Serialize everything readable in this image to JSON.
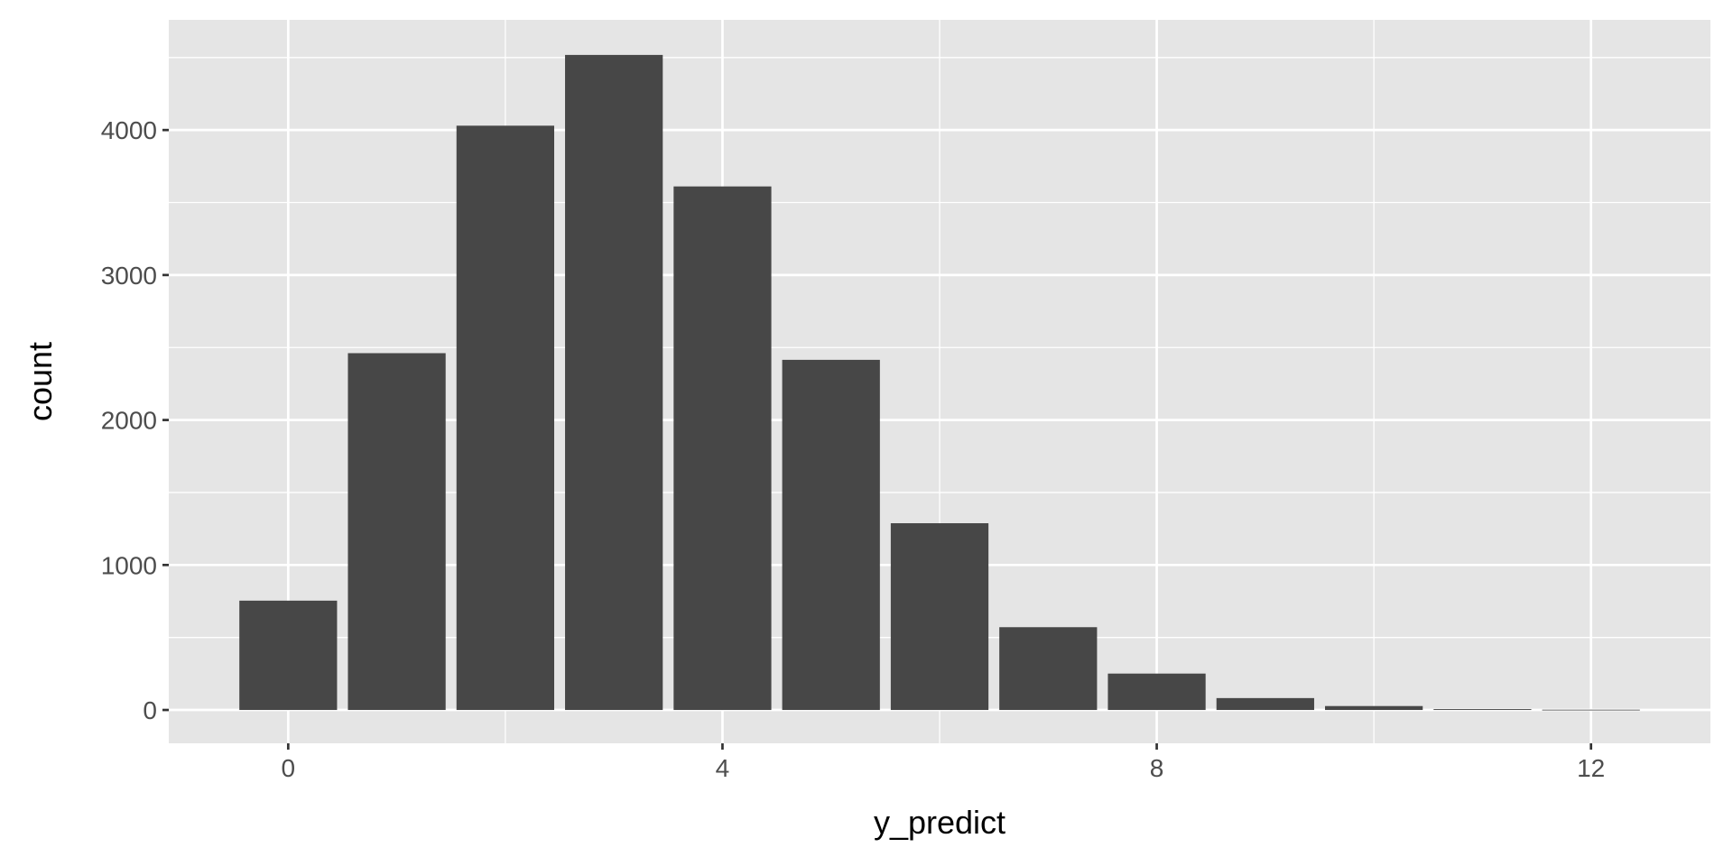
{
  "chart_data": {
    "type": "bar",
    "title": "",
    "xlabel": "y_predict",
    "ylabel": "count",
    "x": [
      0,
      1,
      2,
      3,
      4,
      5,
      6,
      7,
      8,
      9,
      10,
      11,
      12
    ],
    "values": [
      754,
      2461,
      4030,
      4518,
      3611,
      2415,
      1288,
      571,
      251,
      82,
      27,
      6,
      2
    ],
    "xlim": [
      -1.1,
      13.1
    ],
    "ylim": [
      -230,
      4760
    ],
    "xticks": [
      0,
      4,
      8,
      12
    ],
    "xtick_labels": [
      "0",
      "4",
      "8",
      "12"
    ],
    "yticks": [
      0,
      1000,
      2000,
      3000,
      4000
    ],
    "ytick_labels": [
      "0",
      "1000",
      "2000",
      "3000",
      "4000"
    ],
    "grid": true,
    "legend": "none",
    "colors": {
      "panel": "#E5E5E5",
      "bar": "#474747",
      "grid": "#FFFFFF",
      "text": "#4D4D4D"
    }
  }
}
